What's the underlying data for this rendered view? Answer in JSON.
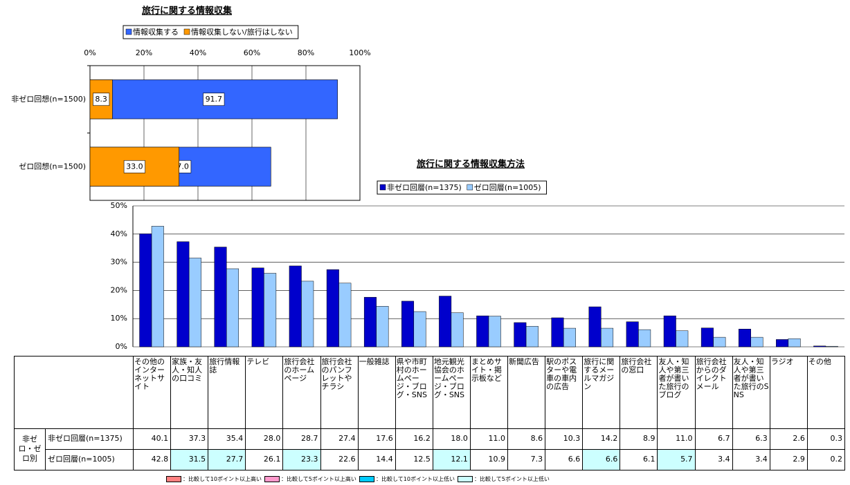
{
  "chart_data": [
    {
      "type": "bar",
      "orientation": "horizontal",
      "stacked": true,
      "title": "旅行に関する情報収集",
      "categories": [
        "非ゼロ回想(n=1500)",
        "ゼロ回想(n=1500)"
      ],
      "series": [
        {
          "name": "情報収集する",
          "color": "#3366ff",
          "values": [
            91.7,
            67.0
          ],
          "value_labels": [
            "91.7",
            "67.0"
          ]
        },
        {
          "name": "情報収集しない/旅行はしない",
          "color": "#ff9900",
          "values": [
            8.3,
            33.0
          ],
          "value_labels": [
            "8.3",
            "33.0"
          ]
        }
      ],
      "xlim": [
        0,
        100
      ],
      "xticks": [
        {
          "value": 0,
          "label": "0%"
        },
        {
          "value": 20,
          "label": "20%"
        },
        {
          "value": 40,
          "label": "40%"
        },
        {
          "value": 60,
          "label": "60%"
        },
        {
          "value": 80,
          "label": "80%"
        },
        {
          "value": 100,
          "label": "100%"
        }
      ],
      "grid": true,
      "legend": "top"
    },
    {
      "type": "bar",
      "orientation": "vertical",
      "title": "旅行に関する情報収集方法",
      "categories": [
        "その他のインターネットサイト",
        "家族・友人・知人の口コミ",
        "旅行情報誌",
        "テレビ",
        "旅行会社のホームページ",
        "旅行会社のパンフレットやチラシ",
        "一般雑誌",
        "県や市町村のホームページ・ブログ・SNS",
        "地元観光協会のホームページ・ブログ・SNS",
        "まとめサイト・掲示板など",
        "新聞広告",
        "駅のポスターや電車の車内の広告",
        "旅行に関するメールマガジン",
        "旅行会社の窓口",
        "友人・知人や第三者が書いた旅行のブログ",
        "旅行会社からのダイレクトメール",
        "友人・知人や第三者が書いた旅行のSNS",
        "ラジオ",
        "その他"
      ],
      "series": [
        {
          "name": "非ゼロ回層(n=1375)",
          "color": "#0000cc",
          "values": [
            40.1,
            37.3,
            35.4,
            28.0,
            28.7,
            27.4,
            17.6,
            16.2,
            18.0,
            11.0,
            8.6,
            10.3,
            14.2,
            8.9,
            11.0,
            6.7,
            6.3,
            2.6,
            0.3
          ],
          "value_labels": [
            "40.1",
            "37.3",
            "35.4",
            "28.0",
            "28.7",
            "27.4",
            "17.6",
            "16.2",
            "18.0",
            "11.0",
            "8.6",
            "10.3",
            "14.2",
            "8.9",
            "11.0",
            "6.7",
            "6.3",
            "2.6",
            "0.3"
          ],
          "cell_colors": [
            null,
            null,
            null,
            null,
            null,
            null,
            null,
            null,
            null,
            null,
            null,
            null,
            null,
            null,
            null,
            null,
            null,
            null,
            null
          ]
        },
        {
          "name": "ゼロ回層(n=1005)",
          "color": "#99ccff",
          "values": [
            42.8,
            31.5,
            27.7,
            26.1,
            23.3,
            22.6,
            14.4,
            12.5,
            12.1,
            10.9,
            7.3,
            6.6,
            6.6,
            6.1,
            5.7,
            3.4,
            3.4,
            2.9,
            0.2
          ],
          "value_labels": [
            "42.8",
            "31.5",
            "27.7",
            "26.1",
            "23.3",
            "22.6",
            "14.4",
            "12.5",
            "12.1",
            "10.9",
            "7.3",
            "6.6",
            "6.6",
            "6.1",
            "5.7",
            "3.4",
            "3.4",
            "2.9",
            "0.2"
          ],
          "cell_colors": [
            null,
            "#ccffff",
            "#ccffff",
            null,
            "#ccffff",
            null,
            null,
            null,
            "#ccffff",
            null,
            null,
            null,
            "#ccffff",
            null,
            "#ccffff",
            null,
            null,
            null,
            null
          ]
        }
      ],
      "ylim": [
        0,
        50
      ],
      "yticks": [
        {
          "value": 0,
          "label": "0%"
        },
        {
          "value": 10,
          "label": "10%"
        },
        {
          "value": 20,
          "label": "20%"
        },
        {
          "value": 30,
          "label": "30%"
        },
        {
          "value": 40,
          "label": "40%"
        },
        {
          "value": 50,
          "label": "50%"
        }
      ],
      "grid": true,
      "legend": "top"
    }
  ],
  "table": {
    "row_group": "非ゼロ・ゼロ別"
  },
  "notes": [
    {
      "color": "#ff8080",
      "label": "：比較して10ポイント以上高い"
    },
    {
      "color": "#ff99cc",
      "label": "：比較して5ポイント以上高い"
    },
    {
      "color": "#00ccff",
      "label": "：比較して10ポイント以上低い"
    },
    {
      "color": "#ccffff",
      "label": "：比較して5ポイント以上低い"
    }
  ]
}
